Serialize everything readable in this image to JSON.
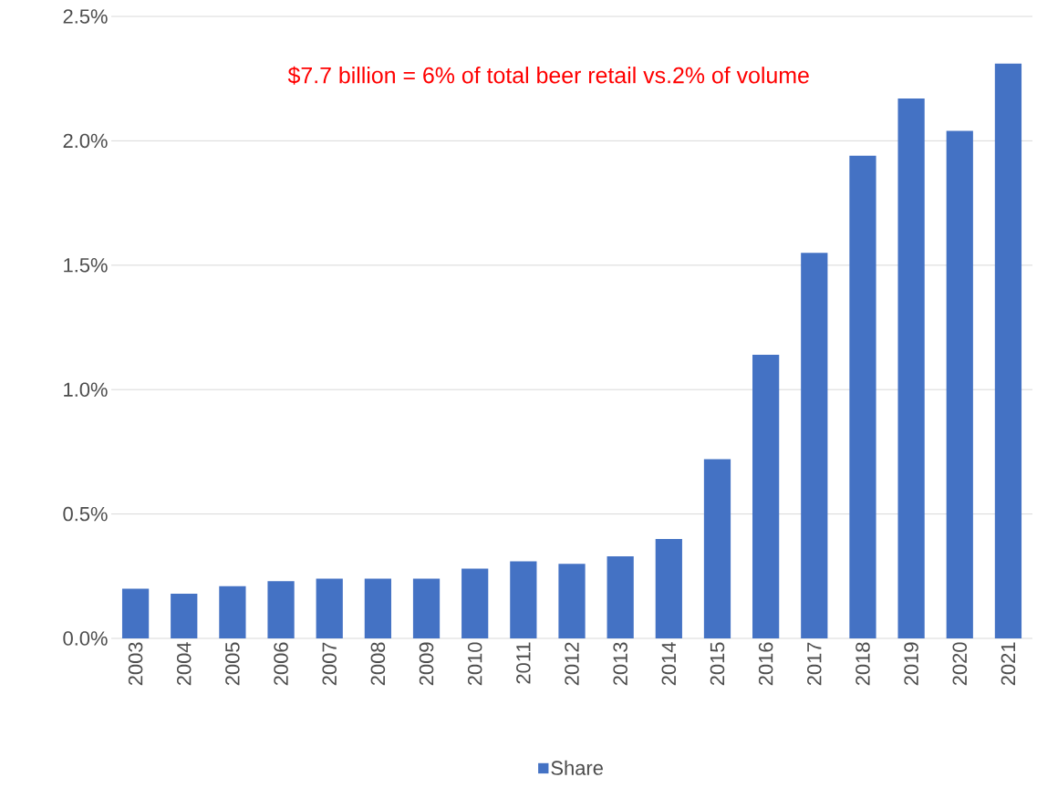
{
  "chart_data": {
    "type": "bar",
    "categories": [
      "2003",
      "2004",
      "2005",
      "2006",
      "2007",
      "2008",
      "2009",
      "2010",
      "2011",
      "2012",
      "2013",
      "2014",
      "2015",
      "2016",
      "2017",
      "2018",
      "2019",
      "2020",
      "2021"
    ],
    "series": [
      {
        "name": "Share",
        "color": "#4472c4",
        "values": [
          0.2,
          0.18,
          0.21,
          0.23,
          0.24,
          0.24,
          0.24,
          0.28,
          0.31,
          0.3,
          0.33,
          0.4,
          0.72,
          1.14,
          1.55,
          1.94,
          2.17,
          2.04,
          2.31
        ]
      }
    ],
    "ylim": [
      0,
      2.5
    ],
    "yticks": [
      {
        "value": 0,
        "label": "0.0%"
      },
      {
        "value": 0.5,
        "label": "0.5%"
      },
      {
        "value": 1,
        "label": "1.0%"
      },
      {
        "value": 1.5,
        "label": "1.5%"
      },
      {
        "value": 2,
        "label": "2.0%"
      },
      {
        "value": 2.5,
        "label": "2.5%"
      }
    ],
    "annotations": [
      "$7.7 billion = 6% of total beer retail vs.2% of volume"
    ],
    "grid": "y",
    "legend": "bottom"
  }
}
